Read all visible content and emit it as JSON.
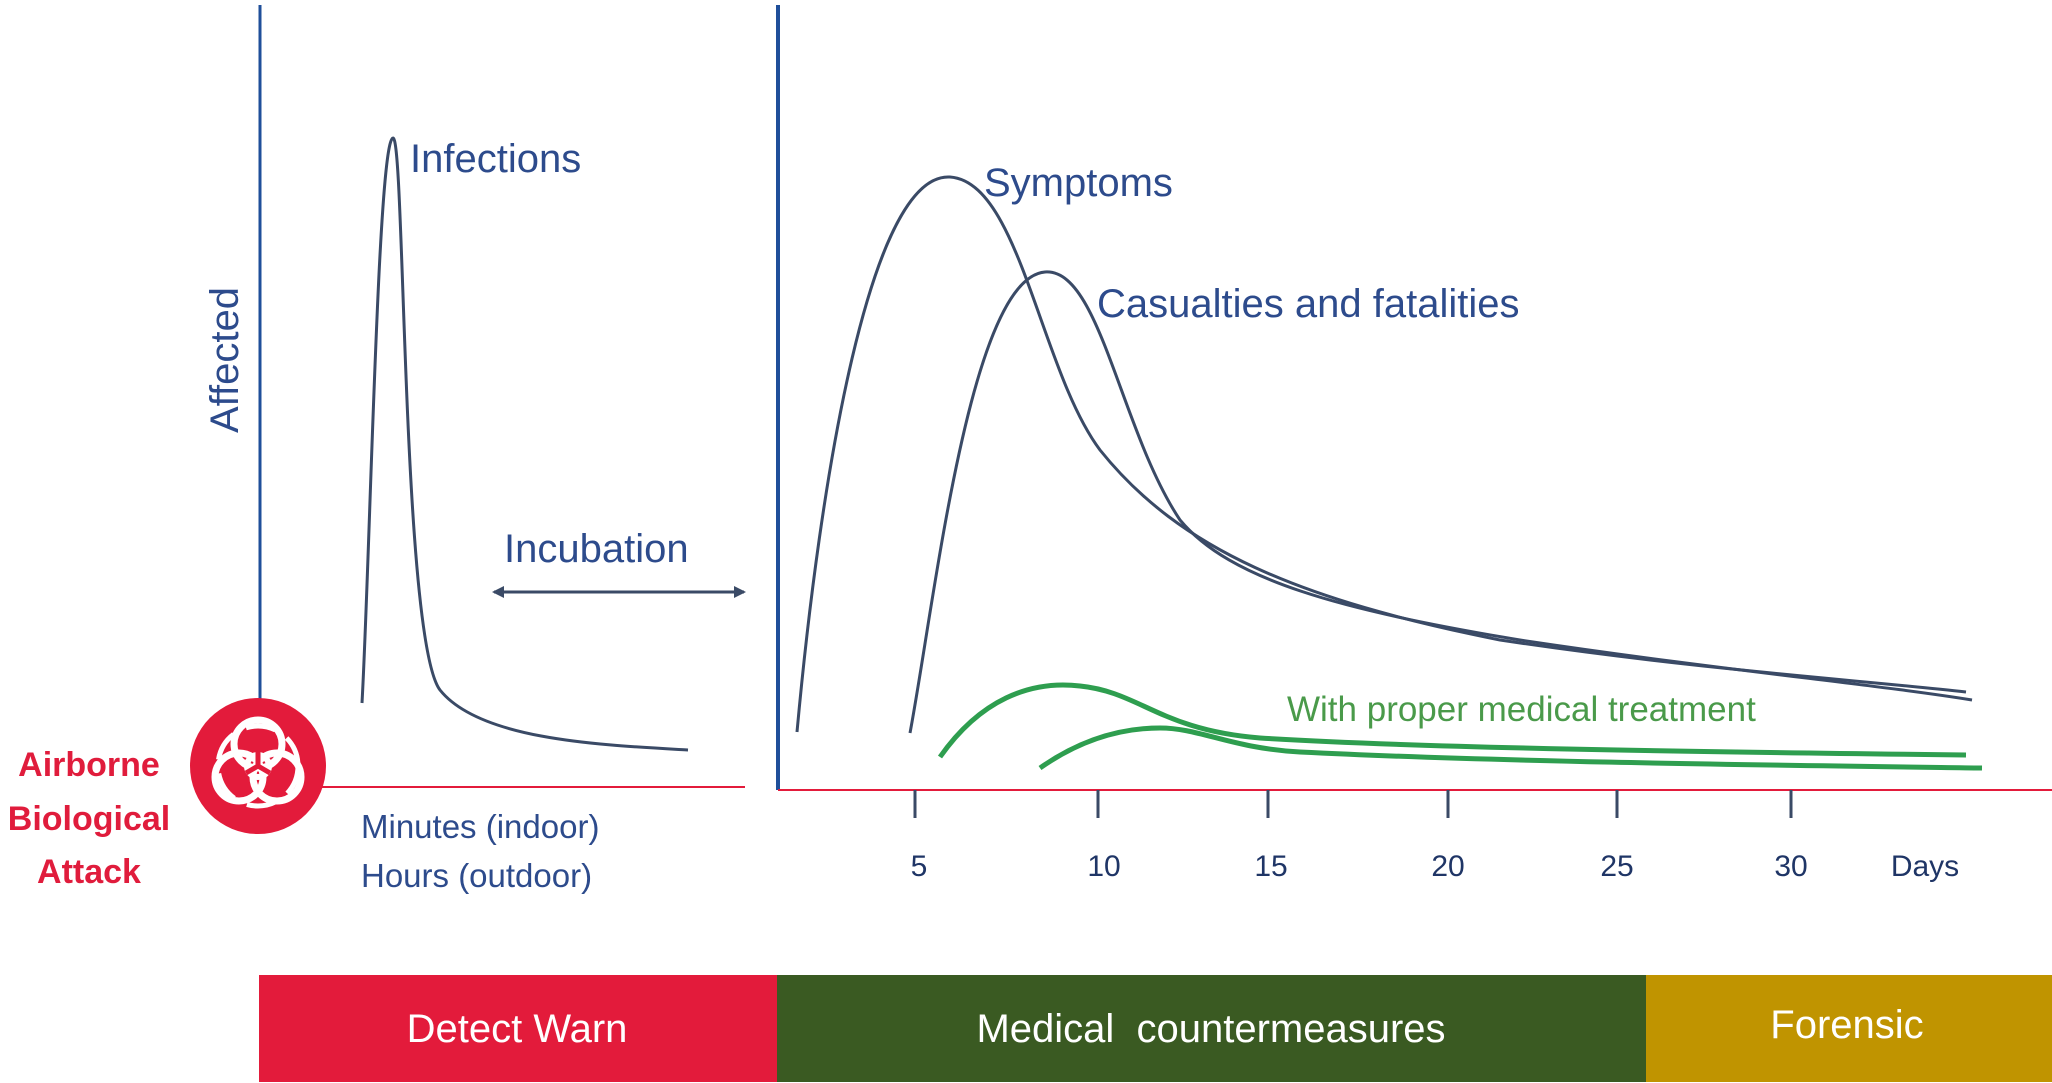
{
  "labels": {
    "y_axis": "Affected",
    "infections": "Infections",
    "incubation": "Incubation",
    "symptoms": "Symptoms",
    "casualties": "Casualties and fatalities",
    "treatment": "With proper medical treatment",
    "minutes": "Minutes (indoor)",
    "hours": "Hours (outdoor)",
    "attack_line1": "Airborne",
    "attack_line2": "Biological",
    "attack_line3": "Attack"
  },
  "day_axis": {
    "ticks": [
      "5",
      "10",
      "15",
      "20",
      "25",
      "30"
    ],
    "unit": "Days"
  },
  "phases": [
    {
      "label": "Detect Warn",
      "color": "#e31b3b"
    },
    {
      "label": "Medical  countermeasures",
      "color": "#3a5a22"
    },
    {
      "label": "Forensic",
      "color": "#c09400"
    }
  ],
  "colors": {
    "axis_blue": "#1f4f9a",
    "baseline_red": "#e31b3b",
    "curve_dark": "#3a4a66",
    "curve_green": "#2e9e4f",
    "hazard": "#e31b3b"
  },
  "icons": {
    "hazard": "biohazard-icon"
  }
}
